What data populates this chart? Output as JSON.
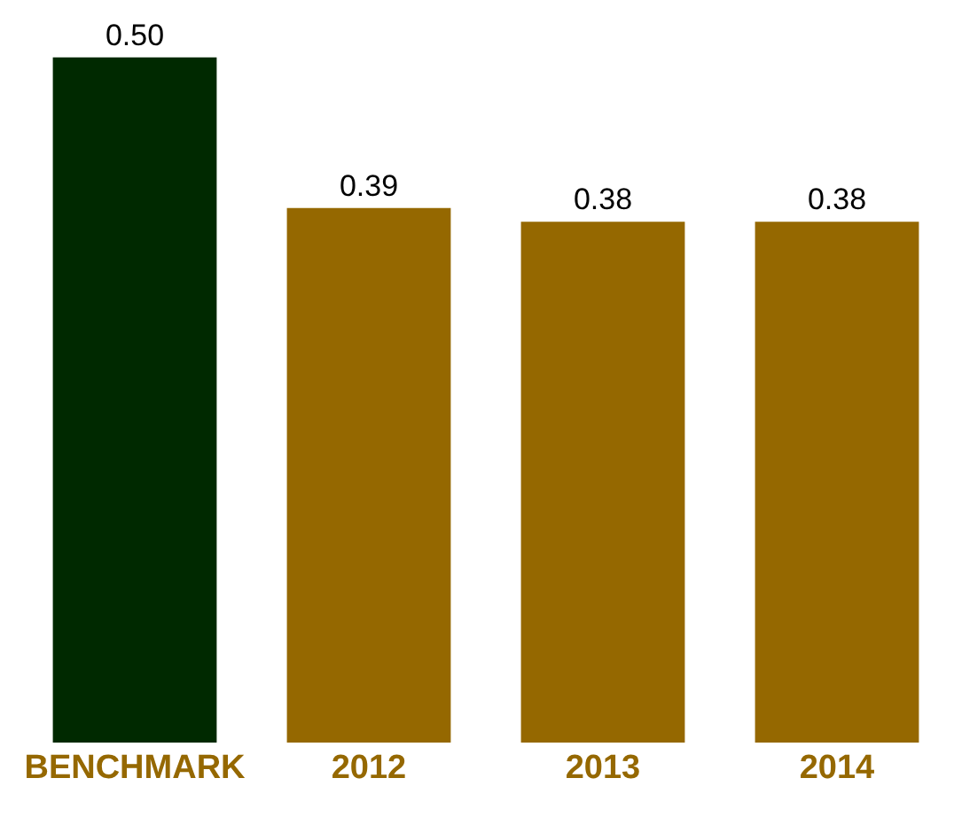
{
  "chart_data": {
    "type": "bar",
    "categories": [
      "BENCHMARK",
      "2012",
      "2013",
      "2014"
    ],
    "values": [
      0.5,
      0.39,
      0.38,
      0.38
    ],
    "colors": [
      "#002900",
      "#956800",
      "#956800",
      "#956800"
    ],
    "value_labels": [
      "0.50",
      "0.39",
      "0.38",
      "0.38"
    ],
    "grid": false,
    "legend": false
  }
}
